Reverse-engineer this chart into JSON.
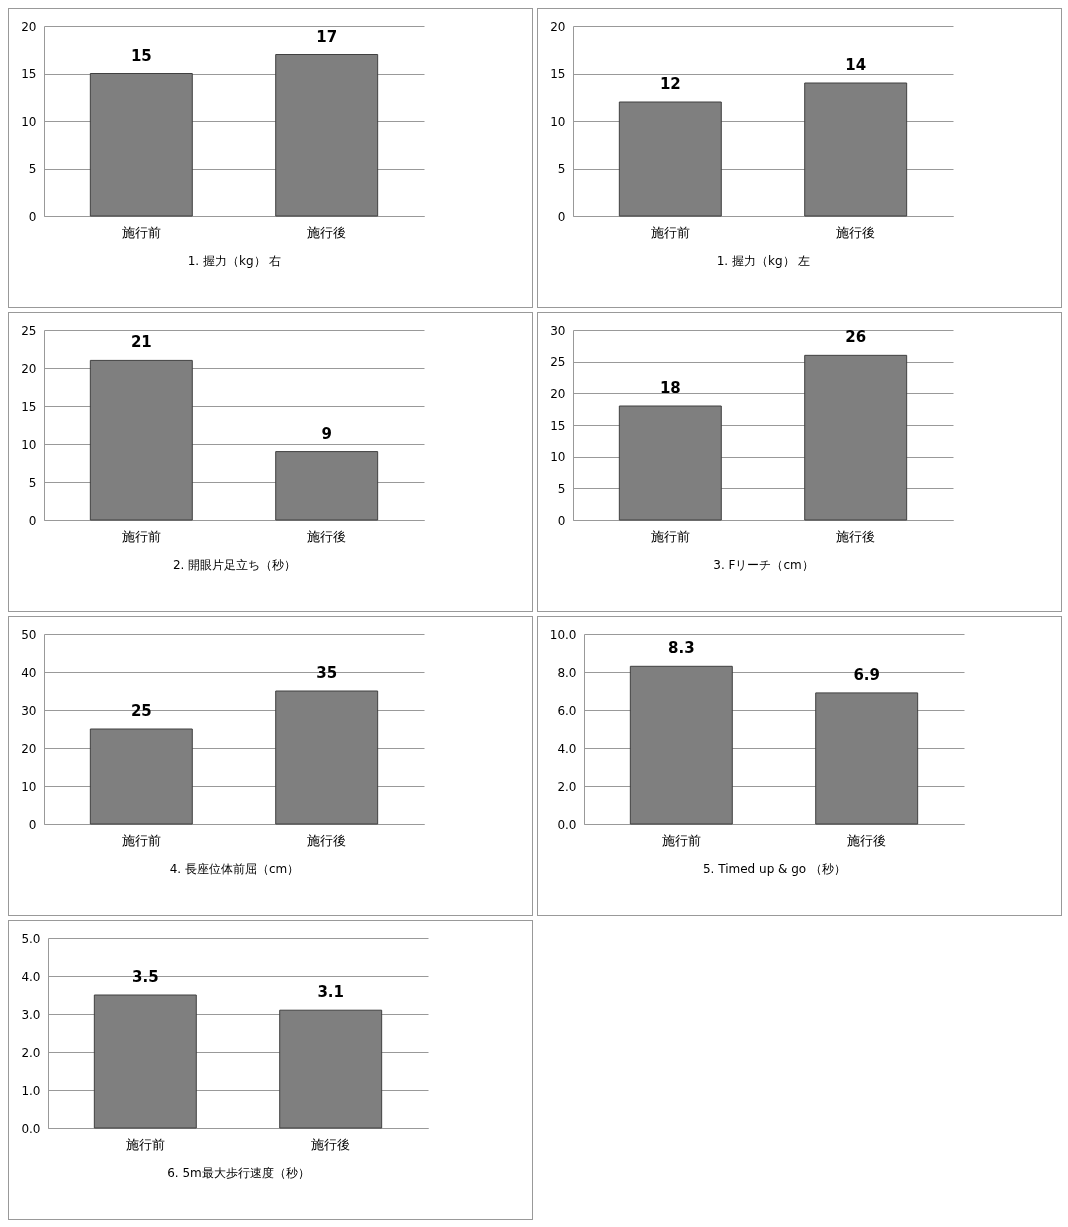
{
  "chart_data": [
    {
      "type": "bar",
      "xlabel": "1. 握力（kg） 右",
      "categories": [
        "施行前",
        "施行後"
      ],
      "values": [
        15,
        17
      ],
      "color": "#7f7f7f",
      "ylim": [
        0,
        20
      ],
      "yticks": [
        0,
        5,
        10,
        15,
        20
      ],
      "grid": "y",
      "data_labels": true
    },
    {
      "type": "bar",
      "xlabel": "1. 握力（kg） 左",
      "categories": [
        "施行前",
        "施行後"
      ],
      "values": [
        12,
        14
      ],
      "color": "#7f7f7f",
      "ylim": [
        0,
        20
      ],
      "yticks": [
        0,
        5,
        10,
        15,
        20
      ],
      "grid": "y",
      "data_labels": true
    },
    {
      "type": "bar",
      "xlabel": "2. 開眼片足立ち（秒）",
      "categories": [
        "施行前",
        "施行後"
      ],
      "values": [
        21,
        9
      ],
      "color": "#7f7f7f",
      "ylim": [
        0,
        25
      ],
      "yticks": [
        0,
        5,
        10,
        15,
        20,
        25
      ],
      "grid": "y",
      "data_labels": true
    },
    {
      "type": "bar",
      "xlabel": "3.  Fリーチ（cm）",
      "categories": [
        "施行前",
        "施行後"
      ],
      "values": [
        18,
        26
      ],
      "color": "#7f7f7f",
      "ylim": [
        0,
        30
      ],
      "yticks": [
        0,
        5,
        10,
        15,
        20,
        25,
        30
      ],
      "grid": "y",
      "data_labels": true
    },
    {
      "type": "bar",
      "xlabel": "4. 長座位体前屈（cm）",
      "categories": [
        "施行前",
        "施行後"
      ],
      "values": [
        25,
        35
      ],
      "color": "#7f7f7f",
      "ylim": [
        0,
        50
      ],
      "yticks": [
        0,
        10,
        20,
        30,
        40,
        50
      ],
      "grid": "y",
      "data_labels": true
    },
    {
      "type": "bar",
      "xlabel": "5.  Timed up & go （秒）",
      "categories": [
        "施行前",
        "施行後"
      ],
      "values": [
        8.3,
        6.9
      ],
      "color": "#7f7f7f",
      "ylim": [
        0,
        10
      ],
      "yticks": [
        {
          "value": 0,
          "label": "0.0"
        },
        {
          "value": 2,
          "label": "2.0"
        },
        {
          "value": 4,
          "label": "4.0"
        },
        {
          "value": 6,
          "label": "6.0"
        },
        {
          "value": 8,
          "label": "8.0"
        },
        {
          "value": 10,
          "label": "10.0"
        }
      ],
      "grid": "y",
      "data_labels": true
    },
    {
      "type": "bar",
      "xlabel": "6.  5m最大歩行速度（秒）",
      "categories": [
        "施行前",
        "施行後"
      ],
      "values": [
        3.5,
        3.1
      ],
      "color": "#7f7f7f",
      "ylim": [
        0,
        5
      ],
      "yticks": [
        {
          "value": 0,
          "label": "0.0"
        },
        {
          "value": 1,
          "label": "1.0"
        },
        {
          "value": 2,
          "label": "2.0"
        },
        {
          "value": 3,
          "label": "3.0"
        },
        {
          "value": 4,
          "label": "4.0"
        },
        {
          "value": 5,
          "label": "5.0"
        }
      ],
      "grid": "y",
      "data_labels": true
    }
  ]
}
